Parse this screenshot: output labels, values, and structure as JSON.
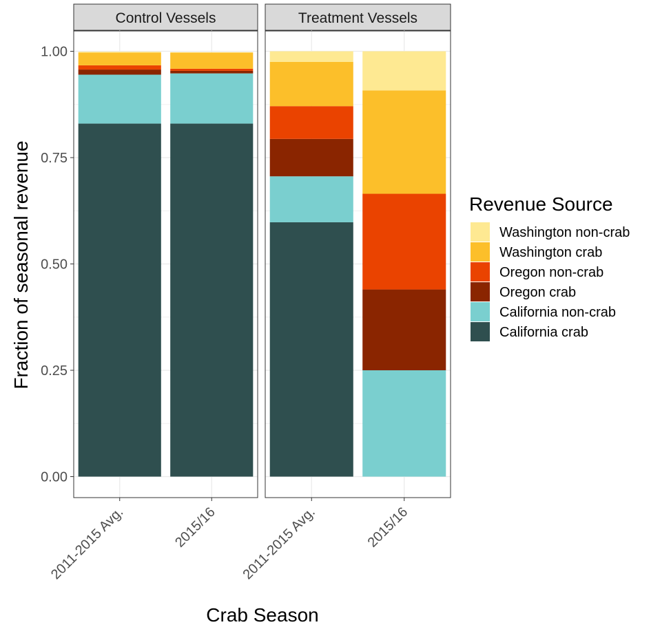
{
  "chart_data": {
    "type": "bar",
    "stacked": true,
    "faceted": true,
    "xlabel": "Crab Season",
    "ylabel": "Fraction of seasonal revenue",
    "ylim": [
      0,
      1.05
    ],
    "yticks": [
      "0.00",
      "0.25",
      "0.50",
      "0.75",
      "1.00"
    ],
    "ytick_values": [
      0,
      0.25,
      0.5,
      0.75,
      1.0
    ],
    "categories": [
      "2011-2015 Avg.",
      "2015/16"
    ],
    "grid": true,
    "legend": {
      "title": "Revenue Source",
      "position": "right",
      "entries": [
        {
          "label": "Washington non-crab",
          "color": "#FEE992"
        },
        {
          "label": "Washington crab",
          "color": "#FCBF2A"
        },
        {
          "label": "Oregon non-crab",
          "color": "#EA4300"
        },
        {
          "label": "Oregon crab",
          "color": "#8A2500"
        },
        {
          "label": "California non-crab",
          "color": "#7ACFCF"
        },
        {
          "label": "California crab",
          "color": "#2F4F4F"
        }
      ]
    },
    "stack_order": [
      "California crab",
      "California non-crab",
      "Oregon crab",
      "Oregon non-crab",
      "Washington crab",
      "Washington non-crab"
    ],
    "colors": {
      "California crab": "#2F4F4F",
      "California non-crab": "#7ACFCF",
      "Oregon crab": "#8A2500",
      "Oregon non-crab": "#EA4300",
      "Washington crab": "#FCBF2A",
      "Washington non-crab": "#FEE992"
    },
    "panels": [
      {
        "title": "Control Vessels",
        "bars": [
          {
            "category": "2011-2015 Avg.",
            "values": {
              "California crab": 0.83,
              "California non-crab": 0.115,
              "Oregon crab": 0.012,
              "Oregon non-crab": 0.01,
              "Washington crab": 0.03,
              "Washington non-crab": 0.002
            }
          },
          {
            "category": "2015/16",
            "values": {
              "California crab": 0.83,
              "California non-crab": 0.118,
              "Oregon crab": 0.006,
              "Oregon non-crab": 0.005,
              "Washington crab": 0.038,
              "Washington non-crab": 0.001
            }
          }
        ]
      },
      {
        "title": "Treatment Vessels",
        "bars": [
          {
            "category": "2011-2015 Avg.",
            "values": {
              "California crab": 0.598,
              "California non-crab": 0.108,
              "Oregon crab": 0.088,
              "Oregon non-crab": 0.077,
              "Washington crab": 0.104,
              "Washington non-crab": 0.025
            }
          },
          {
            "category": "2015/16",
            "values": {
              "California crab": 0.0,
              "California non-crab": 0.25,
              "Oregon crab": 0.19,
              "Oregon non-crab": 0.225,
              "Washington crab": 0.243,
              "Washington non-crab": 0.092
            }
          }
        ]
      }
    ]
  }
}
